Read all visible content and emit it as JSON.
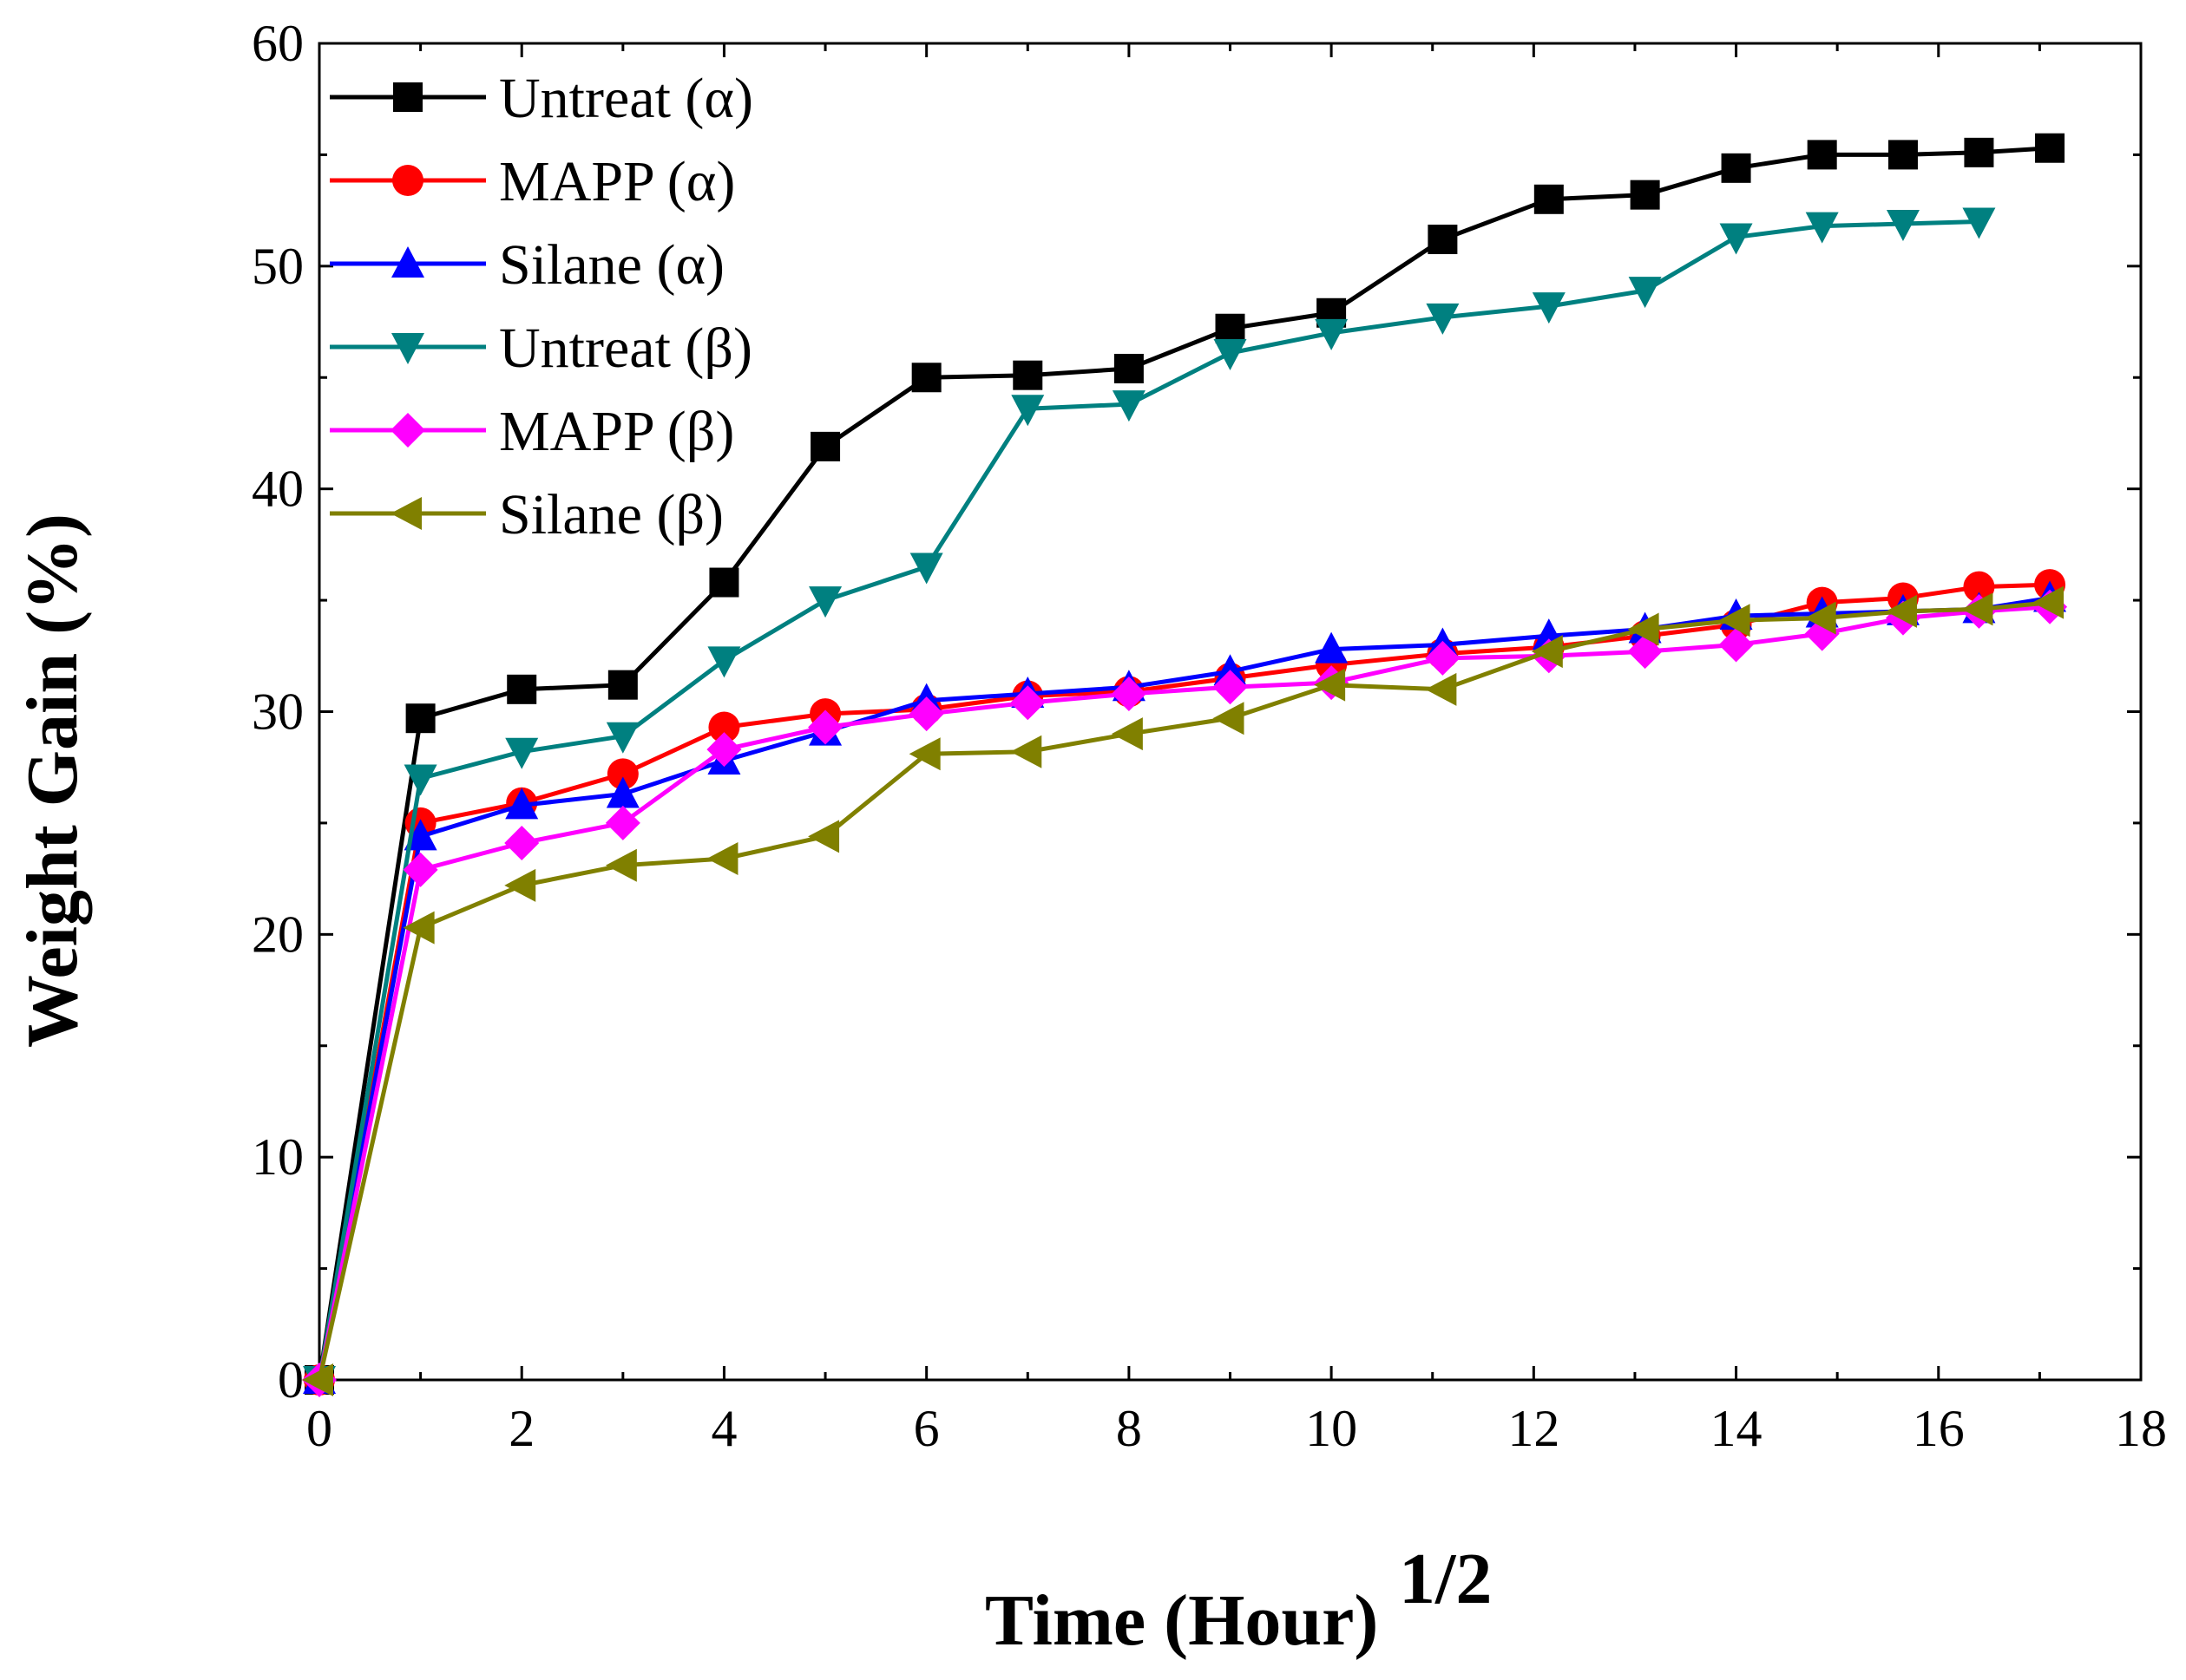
{
  "chart_data": {
    "type": "line",
    "title": "",
    "xlabel": "Time (Hour)",
    "xlabel_sup": "1/2",
    "ylabel": "Weight Gain (%)",
    "xlim": [
      0,
      18
    ],
    "ylim": [
      0,
      60
    ],
    "xticks": [
      0,
      2,
      4,
      6,
      8,
      10,
      12,
      14,
      16,
      18
    ],
    "yticks": [
      0,
      10,
      20,
      30,
      40,
      50,
      60
    ],
    "grid": false,
    "legend_position": "top-left",
    "series": [
      {
        "name": "Untreat (α)",
        "color": "#000000",
        "marker": "square",
        "x": [
          0,
          1,
          2,
          3,
          4,
          5,
          6,
          7,
          8,
          9,
          10,
          11.1,
          12.15,
          13.1,
          14,
          14.85,
          15.65,
          16.4,
          17.1
        ],
        "y": [
          0,
          29.7,
          31.0,
          31.2,
          35.8,
          41.9,
          45.0,
          45.1,
          45.4,
          47.2,
          47.9,
          51.2,
          53.0,
          53.2,
          54.4,
          55.0,
          55.0,
          55.1,
          55.3
        ]
      },
      {
        "name": "MAPP (α)",
        "color": "#ff0000",
        "marker": "circle",
        "x": [
          0,
          1,
          2,
          3,
          4,
          5,
          6,
          7,
          8,
          9,
          10,
          11.1,
          12.15,
          13.1,
          14,
          14.85,
          15.65,
          16.4,
          17.1
        ],
        "y": [
          0,
          25.0,
          25.9,
          27.2,
          29.3,
          29.9,
          30.1,
          30.7,
          30.9,
          31.5,
          32.1,
          32.6,
          32.9,
          33.4,
          33.9,
          34.9,
          35.1,
          35.6,
          35.7
        ]
      },
      {
        "name": "Silane (α)",
        "color": "#0000ff",
        "marker": "triangle-up",
        "x": [
          0,
          1,
          2,
          3,
          4,
          5,
          6,
          7,
          8,
          9,
          10,
          11.1,
          12.15,
          13.1,
          14,
          14.85,
          15.65,
          16.4,
          17.1
        ],
        "y": [
          0,
          24.4,
          25.8,
          26.3,
          27.8,
          29.1,
          30.5,
          30.8,
          31.1,
          31.8,
          32.8,
          33.0,
          33.4,
          33.7,
          34.3,
          34.4,
          34.5,
          34.6,
          35.1
        ]
      },
      {
        "name": "Untreat (β)",
        "color": "#008080",
        "marker": "triangle-down",
        "x": [
          0,
          1,
          2,
          3,
          4,
          5,
          6,
          7,
          8,
          9,
          10,
          11.1,
          12.15,
          13.1,
          14,
          14.85,
          15.65,
          16.4
        ],
        "y": [
          0,
          27.0,
          28.2,
          28.9,
          32.3,
          35.0,
          36.5,
          43.6,
          43.8,
          46.1,
          47.0,
          47.7,
          48.2,
          48.9,
          51.3,
          51.8,
          51.9,
          52.0
        ]
      },
      {
        "name": "MAPP (β)",
        "color": "#ff00ff",
        "marker": "diamond",
        "x": [
          0,
          1,
          2,
          3,
          4,
          5,
          6,
          7,
          8,
          9,
          10,
          11.1,
          12.15,
          13.1,
          14,
          14.85,
          15.65,
          16.4,
          17.1
        ],
        "y": [
          0,
          22.9,
          24.1,
          25.0,
          28.3,
          29.3,
          29.9,
          30.4,
          30.8,
          31.1,
          31.3,
          32.4,
          32.5,
          32.7,
          33.0,
          33.5,
          34.2,
          34.5,
          34.7
        ]
      },
      {
        "name": "Silane (β)",
        "color": "#808000",
        "marker": "triangle-left",
        "x": [
          0,
          1,
          2,
          3,
          4,
          5,
          6,
          7,
          8,
          9,
          10,
          11.1,
          12.15,
          13.1,
          14,
          14.85,
          15.65,
          16.4,
          17.1
        ],
        "y": [
          0,
          20.3,
          22.2,
          23.1,
          23.4,
          24.4,
          28.1,
          28.2,
          29.0,
          29.7,
          31.2,
          31.0,
          32.7,
          33.7,
          34.1,
          34.2,
          34.5,
          34.6,
          34.9
        ]
      }
    ]
  }
}
